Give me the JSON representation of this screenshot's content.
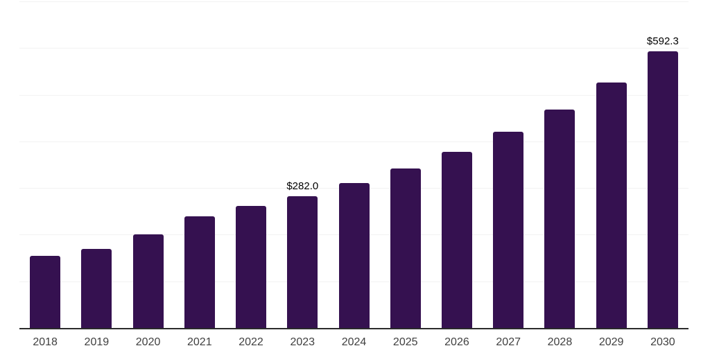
{
  "chart_data": {
    "type": "bar",
    "categories": [
      "2018",
      "2019",
      "2020",
      "2021",
      "2022",
      "2023",
      "2024",
      "2025",
      "2026",
      "2027",
      "2028",
      "2029",
      "2030"
    ],
    "values": [
      154,
      169,
      201,
      240,
      262,
      282.0,
      311,
      342,
      377,
      420,
      468,
      526,
      592.3
    ],
    "data_labels": [
      "",
      "",
      "",
      "",
      "",
      "$282.0",
      "",
      "",
      "",
      "",
      "",
      "",
      "$592.3"
    ],
    "title": "",
    "xlabel": "",
    "ylabel": "",
    "ylim": [
      0,
      700
    ],
    "grid_step": 100,
    "grid": true,
    "legend": false,
    "y_axis_tick_labels_shown": false
  },
  "colors": {
    "bar": "#351150",
    "gridline": "#f2f2f2",
    "axis_line": "#2b2b2b",
    "tick_label": "#3f3f3f",
    "data_label": "#000000",
    "background": "#ffffff"
  }
}
